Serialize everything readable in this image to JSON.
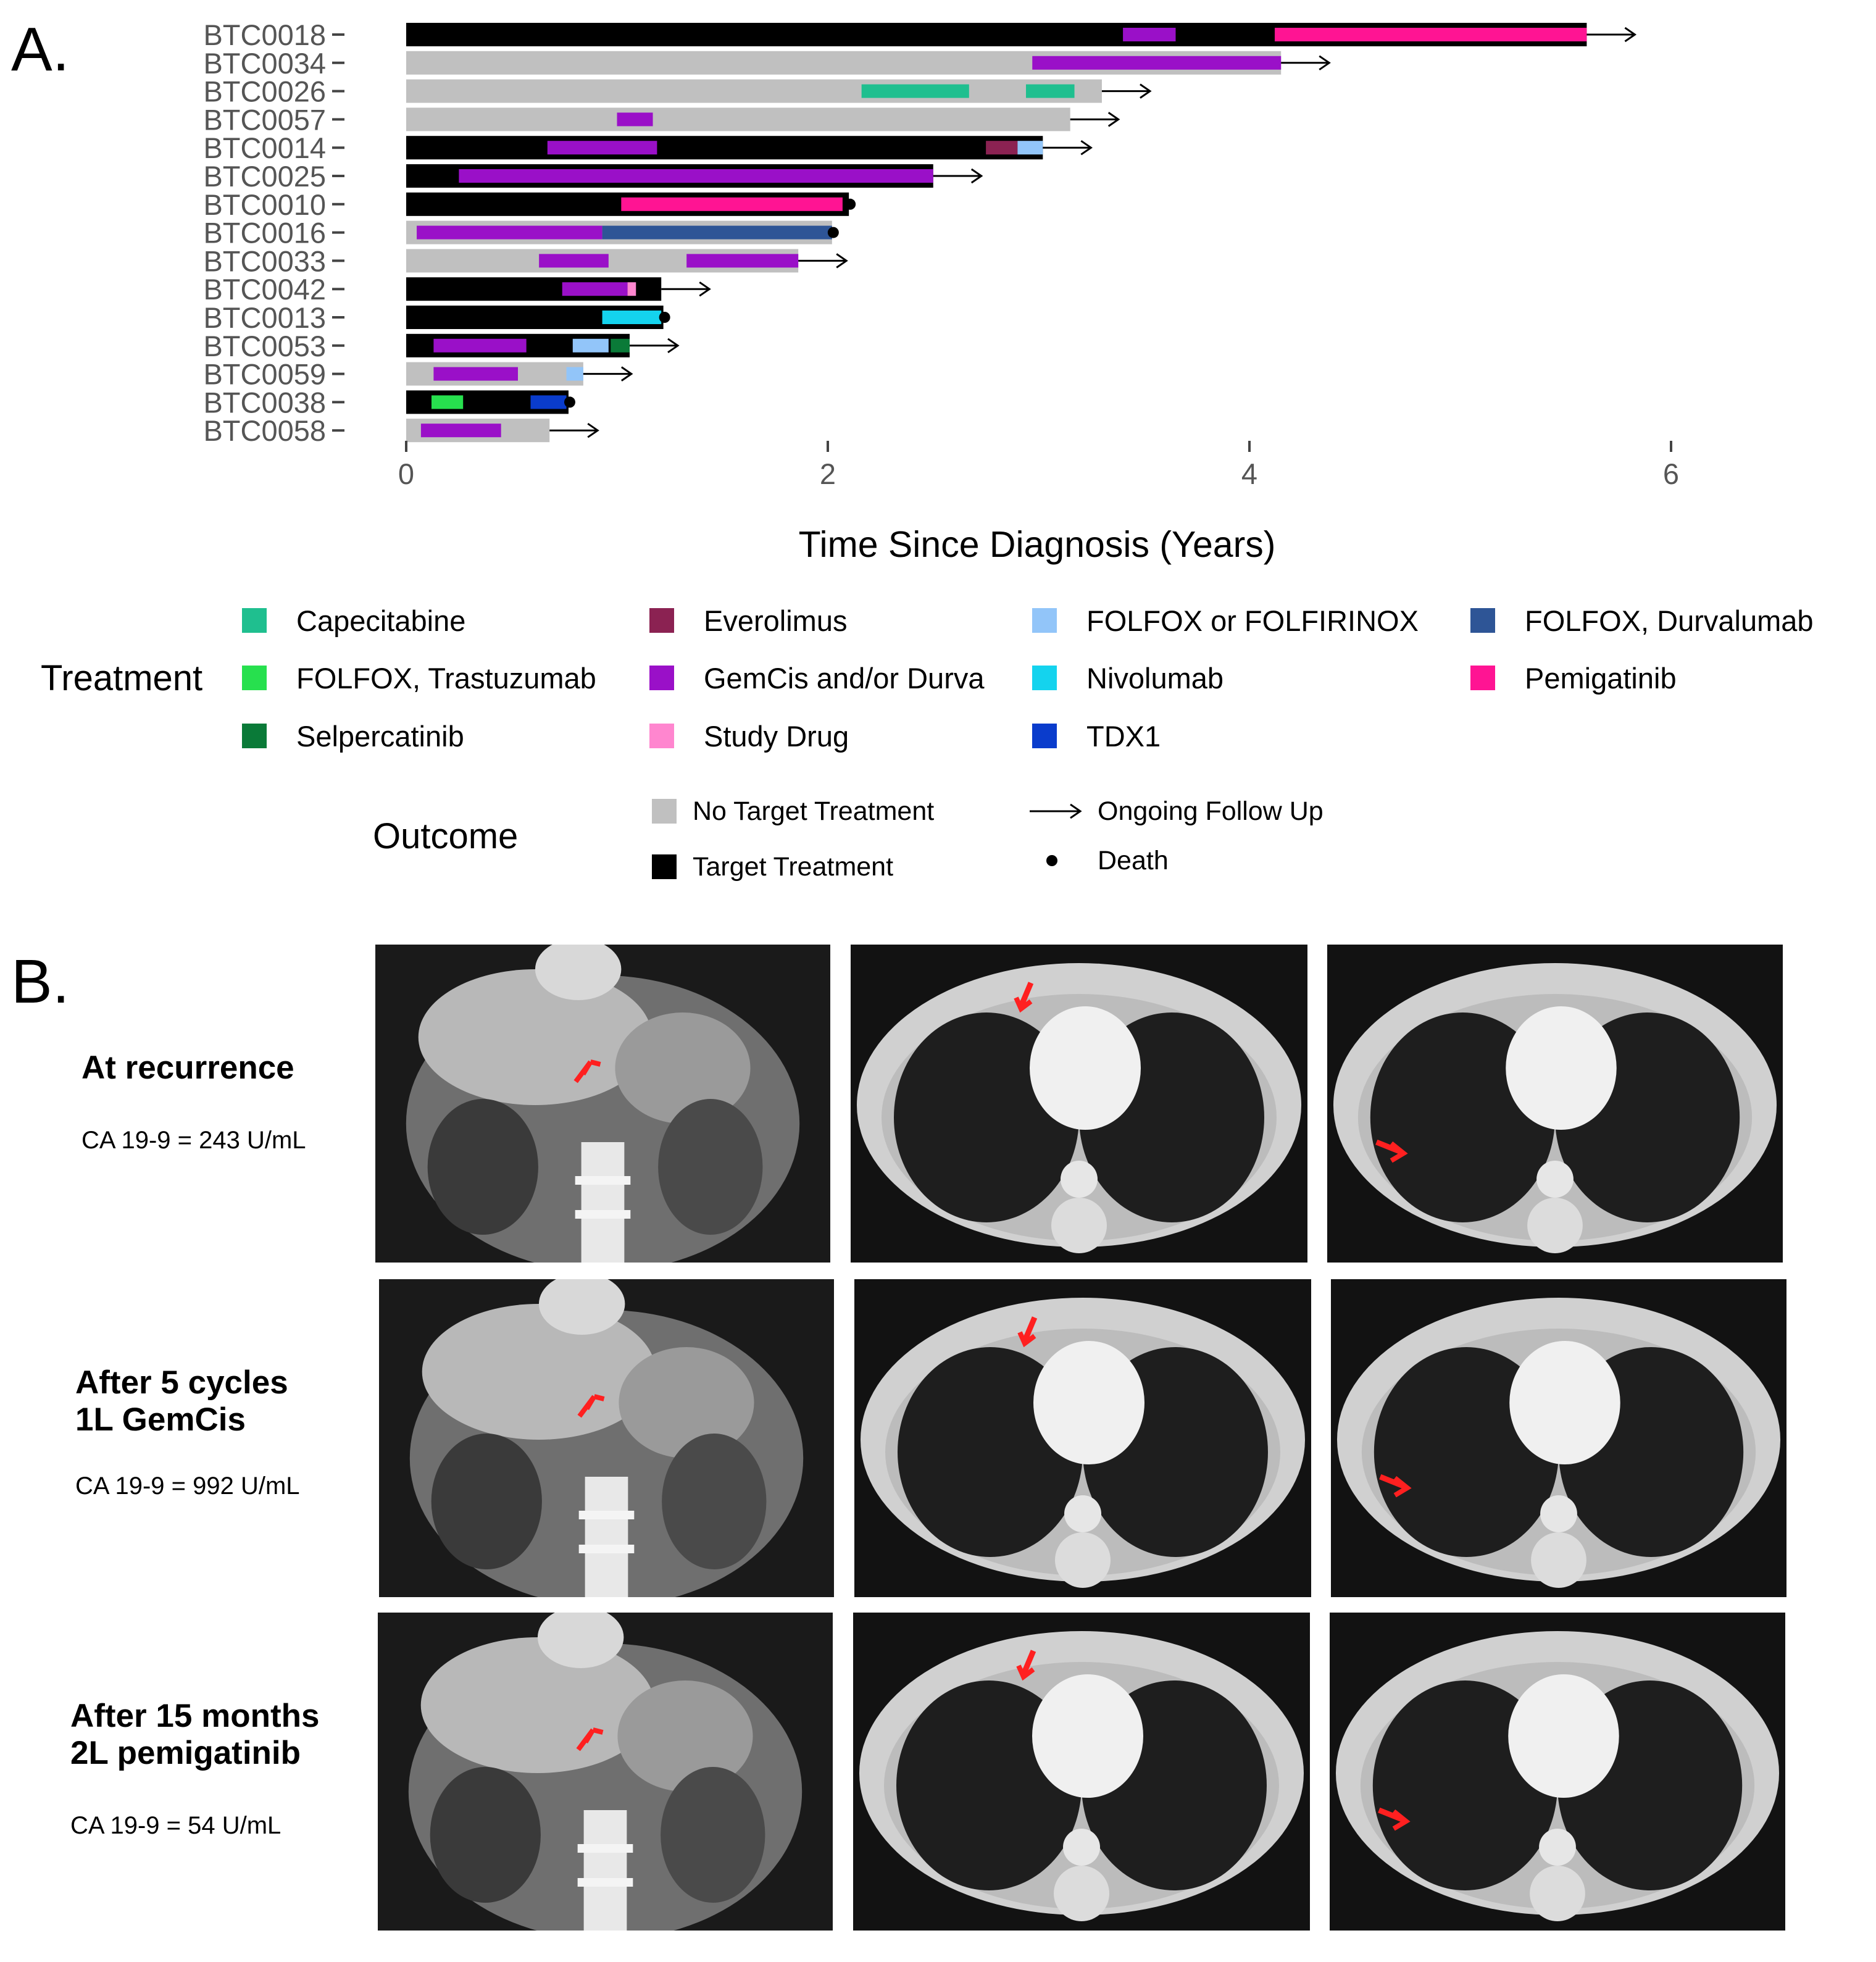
{
  "panel_a_letter": "A.",
  "panel_b_letter": "B.",
  "chart_data": {
    "type": "swimmer",
    "xlabel": "Time Since Diagnosis (Years)",
    "xlim": [
      0,
      6.9
    ],
    "xticks": [
      0,
      2,
      4,
      6
    ],
    "grid": false,
    "patients": [
      {
        "id": "BTC0018",
        "duration": 5.6,
        "outcome": "Target Treatment",
        "end": "Ongoing Follow Up",
        "treatments": [
          {
            "drug": "GemCis and/or Durva",
            "start": 3.4,
            "end": 3.65
          },
          {
            "drug": "Pemigatinib",
            "start": 4.12,
            "end": 5.6
          }
        ]
      },
      {
        "id": "BTC0034",
        "duration": 4.15,
        "outcome": "No Target Treatment",
        "end": "Ongoing Follow Up",
        "treatments": [
          {
            "drug": "GemCis and/or Durva",
            "start": 2.97,
            "end": 4.15
          }
        ]
      },
      {
        "id": "BTC0026",
        "duration": 3.3,
        "outcome": "No Target Treatment",
        "end": "Ongoing Follow Up",
        "treatments": [
          {
            "drug": "Capecitabine",
            "start": 2.16,
            "end": 2.67
          },
          {
            "drug": "Capecitabine",
            "start": 2.94,
            "end": 3.17
          }
        ]
      },
      {
        "id": "BTC0057",
        "duration": 3.15,
        "outcome": "No Target Treatment",
        "end": "Ongoing Follow Up",
        "treatments": [
          {
            "drug": "GemCis and/or Durva",
            "start": 1.0,
            "end": 1.17
          }
        ]
      },
      {
        "id": "BTC0014",
        "duration": 3.02,
        "outcome": "Target Treatment",
        "end": "Ongoing Follow Up",
        "treatments": [
          {
            "drug": "GemCis and/or Durva",
            "start": 0.67,
            "end": 1.19
          },
          {
            "drug": "Everolimus",
            "start": 2.75,
            "end": 2.9
          },
          {
            "drug": "FOLFOX or FOLFIRINOX",
            "start": 2.9,
            "end": 3.02
          }
        ]
      },
      {
        "id": "BTC0025",
        "duration": 2.5,
        "outcome": "Target Treatment",
        "end": "Ongoing Follow Up",
        "treatments": [
          {
            "drug": "GemCis and/or Durva",
            "start": 0.25,
            "end": 2.5
          }
        ]
      },
      {
        "id": "BTC0010",
        "duration": 2.1,
        "outcome": "Target Treatment",
        "end": "Death",
        "treatments": [
          {
            "drug": "Pemigatinib",
            "start": 1.02,
            "end": 2.07
          }
        ]
      },
      {
        "id": "BTC0016",
        "duration": 2.02,
        "outcome": "No Target Treatment",
        "end": "Death",
        "treatments": [
          {
            "drug": "GemCis and/or Durva",
            "start": 0.05,
            "end": 0.93
          },
          {
            "drug": "FOLFOX, Durvalumab",
            "start": 0.93,
            "end": 2.02
          }
        ]
      },
      {
        "id": "BTC0033",
        "duration": 1.86,
        "outcome": "No Target Treatment",
        "end": "Ongoing Follow Up",
        "treatments": [
          {
            "drug": "GemCis and/or Durva",
            "start": 0.63,
            "end": 0.96
          },
          {
            "drug": "GemCis and/or Durva",
            "start": 1.33,
            "end": 1.86
          }
        ]
      },
      {
        "id": "BTC0042",
        "duration": 1.21,
        "outcome": "Target Treatment",
        "end": "Ongoing Follow Up",
        "treatments": [
          {
            "drug": "GemCis and/or Durva",
            "start": 0.74,
            "end": 1.05
          },
          {
            "drug": "Study Drug",
            "start": 1.05,
            "end": 1.09
          }
        ]
      },
      {
        "id": "BTC0013",
        "duration": 1.22,
        "outcome": "Target Treatment",
        "end": "Death",
        "treatments": [
          {
            "drug": "Nivolumab",
            "start": 0.93,
            "end": 1.21
          }
        ]
      },
      {
        "id": "BTC0053",
        "duration": 1.06,
        "outcome": "Target Treatment",
        "end": "Ongoing Follow Up",
        "treatments": [
          {
            "drug": "GemCis and/or Durva",
            "start": 0.13,
            "end": 0.57
          },
          {
            "drug": "FOLFOX or FOLFIRINOX",
            "start": 0.79,
            "end": 0.96
          },
          {
            "drug": "Selpercatinib",
            "start": 0.97,
            "end": 1.06
          }
        ]
      },
      {
        "id": "BTC0059",
        "duration": 0.84,
        "outcome": "No Target Treatment",
        "end": "Ongoing Follow Up",
        "treatments": [
          {
            "drug": "GemCis and/or Durva",
            "start": 0.13,
            "end": 0.53
          },
          {
            "drug": "FOLFOX or FOLFIRINOX",
            "start": 0.76,
            "end": 0.84
          }
        ]
      },
      {
        "id": "BTC0038",
        "duration": 0.77,
        "outcome": "Target Treatment",
        "end": "Death",
        "treatments": [
          {
            "drug": "FOLFOX, Trastuzumab",
            "start": 0.12,
            "end": 0.27
          },
          {
            "drug": "TDX1",
            "start": 0.59,
            "end": 0.76
          }
        ]
      },
      {
        "id": "BTC0058",
        "duration": 0.68,
        "outcome": "No Target Treatment",
        "end": "Ongoing Follow Up",
        "treatments": [
          {
            "drug": "GemCis and/or Durva",
            "start": 0.07,
            "end": 0.45
          }
        ]
      }
    ],
    "treatment_legend_title": "Treatment",
    "treatment_legend": [
      {
        "name": "Capecitabine",
        "color": "#1fbf8f"
      },
      {
        "name": "Everolimus",
        "color": "#8b2252"
      },
      {
        "name": "FOLFOX or FOLFIRINOX",
        "color": "#92c5f9"
      },
      {
        "name": "FOLFOX, Durvalumab",
        "color": "#2e5596"
      },
      {
        "name": "FOLFOX, Trastuzumab",
        "color": "#27e04e"
      },
      {
        "name": "GemCis and/or Durva",
        "color": "#9a10c8"
      },
      {
        "name": "Nivolumab",
        "color": "#14d3ee"
      },
      {
        "name": "Pemigatinib",
        "color": "#ff1493"
      },
      {
        "name": "Selpercatinib",
        "color": "#0a7a38"
      },
      {
        "name": "Study Drug",
        "color": "#ff86cf"
      },
      {
        "name": "TDX1",
        "color": "#0a3ccc"
      }
    ],
    "outcome_legend_title": "Outcome",
    "outcome_legend": [
      {
        "name": "No Target Treatment",
        "color": "#c0c0c0"
      },
      {
        "name": "Ongoing Follow Up",
        "symbol": "arrow"
      },
      {
        "name": "Target Treatment",
        "color": "#000000"
      },
      {
        "name": "Death",
        "symbol": "dot"
      }
    ]
  },
  "panel_b": {
    "rows": [
      {
        "title_lines": [
          "At recurrence"
        ],
        "ca": "CA 19-9 = 243 U/mL"
      },
      {
        "title_lines": [
          "After 5 cycles",
          "1L GemCis"
        ],
        "ca": "CA 19-9 = 992 U/mL"
      },
      {
        "title_lines": [
          "After 15 months",
          "2L pemigatinib"
        ],
        "ca": "CA 19-9 = 54 U/mL"
      }
    ]
  }
}
